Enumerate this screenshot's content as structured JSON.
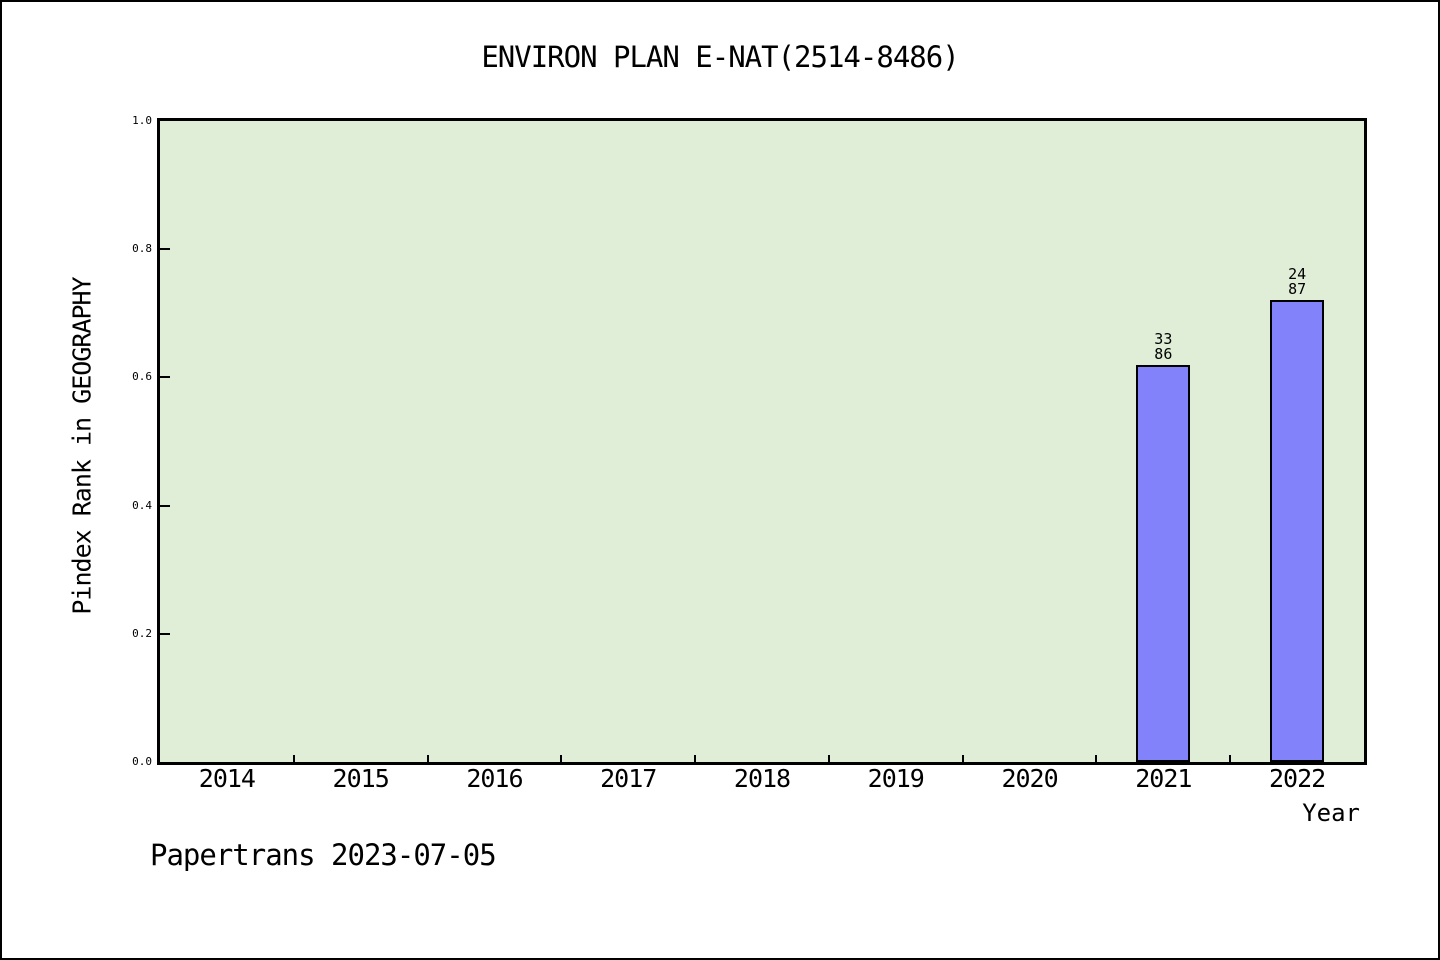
{
  "chart_data": {
    "type": "bar",
    "title": "ENVIRON PLAN E-NAT(2514-8486)",
    "xlabel": "Year",
    "ylabel": "Pindex Rank in GEOGRAPHY",
    "categories": [
      "2014",
      "2015",
      "2016",
      "2017",
      "2018",
      "2019",
      "2020",
      "2021",
      "2022"
    ],
    "values": [
      null,
      null,
      null,
      null,
      null,
      null,
      null,
      0.62,
      0.72
    ],
    "bar_labels": [
      null,
      null,
      null,
      null,
      null,
      null,
      null,
      [
        "33",
        "86"
      ],
      [
        "24",
        "87"
      ]
    ],
    "ylim": [
      0,
      1
    ],
    "yticks": [
      "0.0",
      "0.2",
      "0.4",
      "0.6",
      "0.8",
      "1.0"
    ],
    "grid": false,
    "legend": "none",
    "bar_color": "#8282fa",
    "bar_edge_color": "#000000",
    "plot_bg_color": "#e0eed8",
    "axis_color": "#000000"
  },
  "footer": {
    "text": "Papertrans 2023-07-05"
  }
}
